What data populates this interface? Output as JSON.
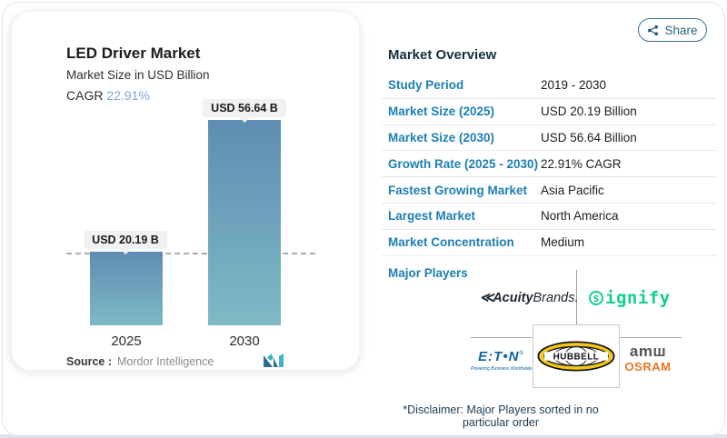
{
  "chart": {
    "title": "LED Driver Market",
    "subtitle": "Market Size in USD Billion",
    "cagr_label": "CAGR",
    "cagr_value": "22.91%",
    "bars": [
      {
        "year": "2025",
        "label": "USD 20.19 B",
        "value": 20.19
      },
      {
        "year": "2030",
        "label": "USD 56.64 B",
        "value": 56.64
      }
    ],
    "source_label": "Source :",
    "source_value": "Mordor Intelligence"
  },
  "chart_data": {
    "type": "bar",
    "title": "LED Driver Market",
    "subtitle": "Market Size in USD Billion",
    "cagr": "22.91%",
    "categories": [
      "2025",
      "2030"
    ],
    "values": [
      20.19,
      56.64
    ],
    "unit": "USD Billion",
    "data_labels": [
      "USD 20.19 B",
      "USD 56.64 B"
    ],
    "ylim": [
      0,
      60
    ],
    "grid": false,
    "legend": "none",
    "annotations": [
      "horizontal dashed reference line at 2025 bar top"
    ],
    "source": "Mordor Intelligence"
  },
  "share": {
    "label": "Share"
  },
  "overview": {
    "title": "Market Overview",
    "rows": [
      {
        "label": "Study Period",
        "value": "2019 - 2030"
      },
      {
        "label": "Market Size (2025)",
        "value": "USD 20.19 Billion"
      },
      {
        "label": "Market Size (2030)",
        "value": "USD 56.64 Billion"
      },
      {
        "label": "Growth Rate (2025 - 2030)",
        "value": "22.91% CAGR"
      },
      {
        "label": "Fastest Growing Market",
        "value": "Asia Pacific"
      },
      {
        "label": "Largest Market",
        "value": "North America"
      },
      {
        "label": "Market Concentration",
        "value": "Medium"
      }
    ],
    "major_players_label": "Major Players",
    "disclaimer": "*Disclaimer: Major Players sorted in no particular order"
  },
  "players": {
    "acuity": {
      "mark": "≪",
      "bold": "Acuity",
      "regular": "Brands."
    },
    "signify": {
      "s": "s",
      "rest": "ignify"
    },
    "eaton": {
      "word": "E:T•N",
      "reg": "®",
      "tagline": "Powering Business Worldwide"
    },
    "hubbell": {
      "word": "HUBBELL"
    },
    "ams_osram": {
      "top": "amш",
      "bottom": "OSRAM"
    }
  },
  "colors": {
    "table_label_blue": "#1d7fb2",
    "cagr_blue": "#7ea6d6",
    "bar_gradient_top": "#5f8db3",
    "bar_gradient_bottom": "#7ebac5",
    "signify_green": "#14cd90",
    "eaton_blue": "#0a64a6",
    "osram_orange": "#ee7420",
    "hubbell_yellow": "#f3c711",
    "share_border": "#356f93"
  }
}
